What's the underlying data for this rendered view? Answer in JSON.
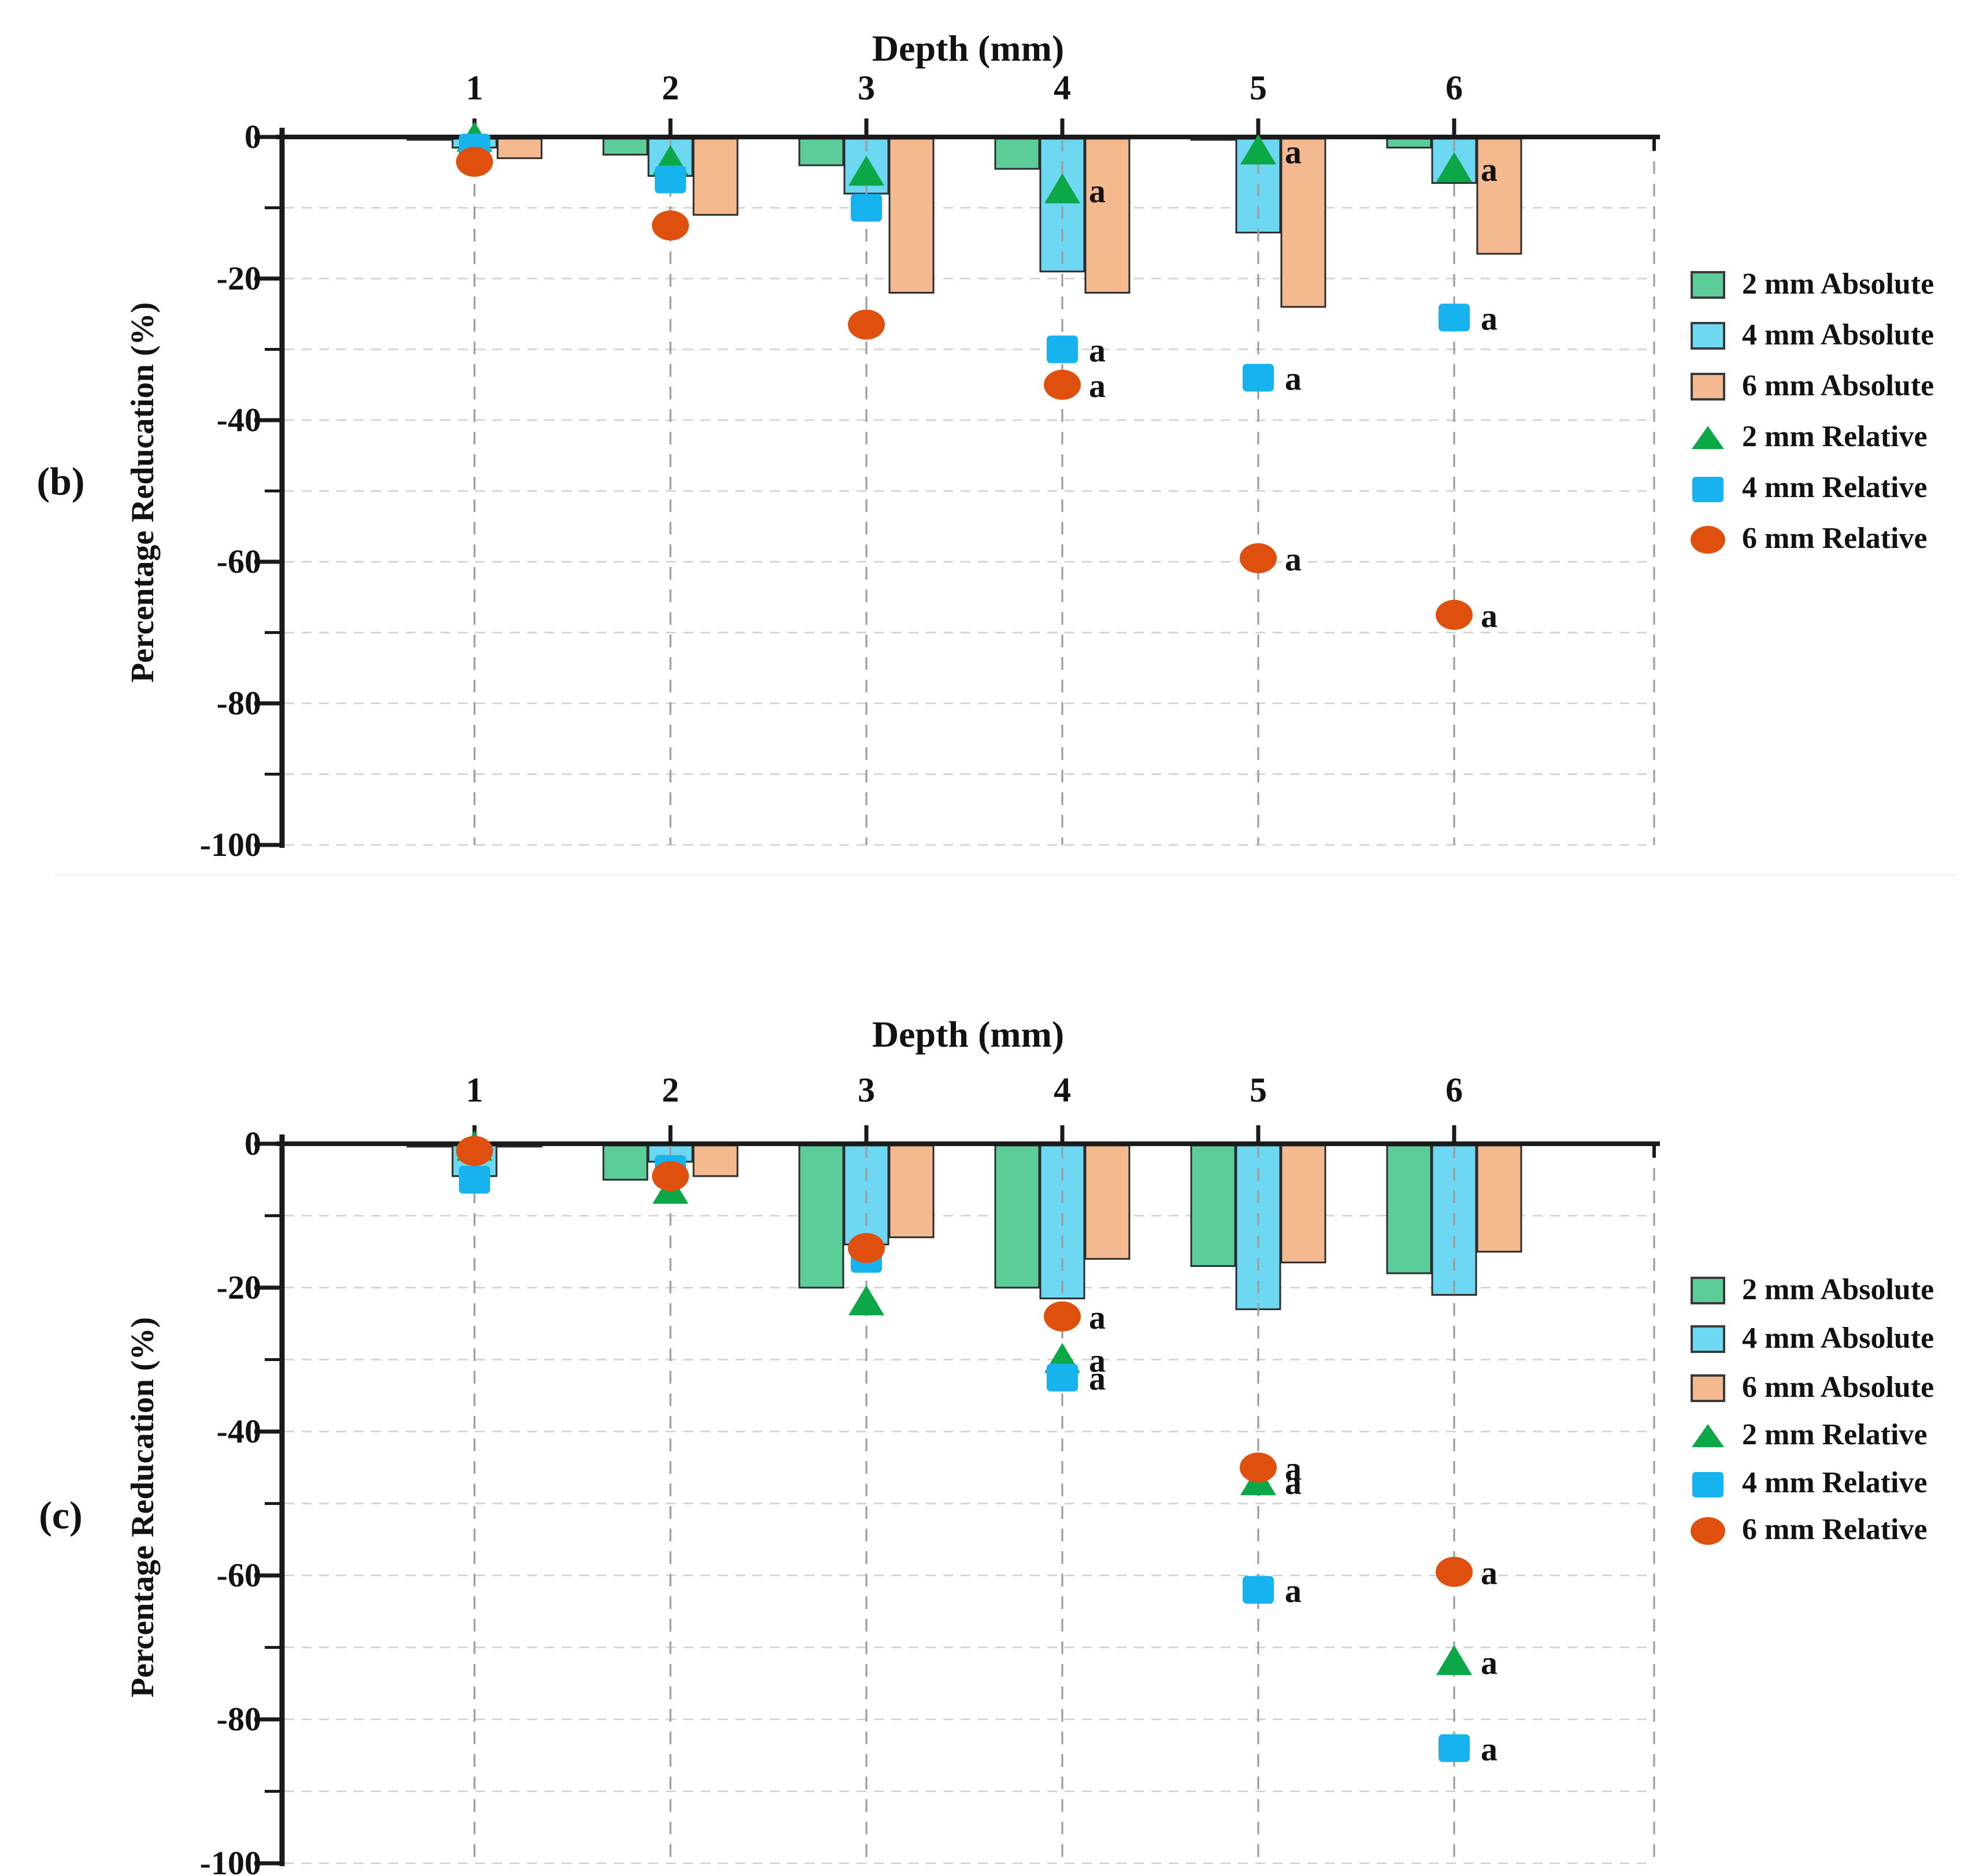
{
  "figure": {
    "background": "#ffffff",
    "divider_present": true,
    "legend": {
      "items": [
        {
          "label": "2 mm Absolute",
          "swatch": "bar",
          "color": "#5CCC98"
        },
        {
          "label": "4 mm Absolute",
          "swatch": "bar",
          "color": "#6ED7F2"
        },
        {
          "label": "6 mm Absolute",
          "swatch": "bar",
          "color": "#F5B98F"
        },
        {
          "label": "2 mm Relative",
          "swatch": "triangle",
          "color": "#0CA847"
        },
        {
          "label": "4 mm Relative",
          "swatch": "square",
          "color": "#17B3EF"
        },
        {
          "label": "6 mm Relative",
          "swatch": "circle",
          "color": "#DF500E"
        }
      ]
    },
    "colors": {
      "axis": "#1a1a1a",
      "text": "#121212",
      "grid_horizontal": "#cfcfcf",
      "grid_vertical": "#9d9d9d",
      "bar_border": "#2b2b2b"
    }
  },
  "chart_data": [
    {
      "type": "bar",
      "panel_label": "(b)",
      "title": "Depth (mm)",
      "xlabel": "Depth (mm)",
      "ylabel": "Percentage Reducation (%)",
      "categories": [
        1,
        2,
        3,
        4,
        5,
        6
      ],
      "x_tick_labels": [
        "1",
        "2",
        "3",
        "4",
        "5",
        "6"
      ],
      "y_tick_labels": [
        "0",
        "-20",
        "-40",
        "-60",
        "-80",
        "-100"
      ],
      "ylim": [
        -100,
        0
      ],
      "y_major_step": 20,
      "y_minor_step": 10,
      "grid": "dashed",
      "legend_position": "right",
      "series": [
        {
          "name": "2 mm Absolute",
          "kind": "bar",
          "color": "#5CCC98",
          "values": [
            -0.2,
            -2.5,
            -4,
            -4.5,
            -0.2,
            -1.5
          ]
        },
        {
          "name": "4 mm Absolute",
          "kind": "bar",
          "color": "#6ED7F2",
          "values": [
            -1.5,
            -5.5,
            -8,
            -19,
            -13.5,
            -6.5
          ]
        },
        {
          "name": "6 mm Absolute",
          "kind": "bar",
          "color": "#F5B98F",
          "values": [
            -3,
            -11,
            -22,
            -22,
            -24,
            -16.5
          ]
        },
        {
          "name": "2 mm Relative",
          "kind": "point-triangle",
          "color": "#0CA847",
          "values": [
            -0.2,
            -3.5,
            -5,
            -7.5,
            -2,
            -4.5
          ],
          "annotations": [
            null,
            null,
            null,
            "a",
            "a",
            "a"
          ]
        },
        {
          "name": "4 mm Relative",
          "kind": "point-square",
          "color": "#17B3EF",
          "values": [
            -1.5,
            -6,
            -10,
            -30,
            -34,
            -25.5
          ],
          "annotations": [
            null,
            null,
            null,
            "a",
            "a",
            "a"
          ]
        },
        {
          "name": "6 mm Relative",
          "kind": "point-circle",
          "color": "#DF500E",
          "values": [
            -3.5,
            -12.5,
            -26.5,
            -35,
            -59.5,
            -67.5
          ],
          "annotations": [
            null,
            null,
            null,
            "a",
            "a",
            "a"
          ]
        }
      ]
    },
    {
      "type": "bar",
      "panel_label": "(c)",
      "title": "Depth (mm)",
      "xlabel": "Depth (mm)",
      "ylabel": "Percentage Reducation (%)",
      "categories": [
        1,
        2,
        3,
        4,
        5,
        6
      ],
      "x_tick_labels": [
        "1",
        "2",
        "3",
        "4",
        "5",
        "6"
      ],
      "y_tick_labels": [
        "0",
        "-20",
        "-40",
        "-60",
        "-80",
        "-100"
      ],
      "ylim": [
        -100,
        0
      ],
      "y_major_step": 20,
      "y_minor_step": 10,
      "grid": "dashed",
      "legend_position": "right",
      "series": [
        {
          "name": "2 mm Absolute",
          "kind": "bar",
          "color": "#5CCC98",
          "values": [
            -0.2,
            -5,
            -20,
            -20,
            -17,
            -18
          ]
        },
        {
          "name": "4 mm Absolute",
          "kind": "bar",
          "color": "#6ED7F2",
          "values": [
            -4.5,
            -2.5,
            -14,
            -21.5,
            -23,
            -21
          ]
        },
        {
          "name": "6 mm Absolute",
          "kind": "bar",
          "color": "#F5B98F",
          "values": [
            -0.2,
            -4.5,
            -13,
            -16,
            -16.5,
            -15
          ]
        },
        {
          "name": "2 mm Relative",
          "kind": "point-triangle",
          "color": "#0CA847",
          "values": [
            -0.5,
            -6.5,
            -22,
            -30,
            -47,
            -72
          ],
          "annotations": [
            null,
            null,
            null,
            "a",
            "a",
            "a"
          ]
        },
        {
          "name": "4 mm Relative",
          "kind": "point-square",
          "color": "#17B3EF",
          "values": [
            -5,
            -3.5,
            -16,
            -32.5,
            -62,
            -84
          ],
          "annotations": [
            null,
            null,
            null,
            "a",
            "a",
            "a"
          ]
        },
        {
          "name": "6 mm Relative",
          "kind": "point-circle",
          "color": "#DF500E",
          "values": [
            -1,
            -4.5,
            -14.5,
            -24,
            -45,
            -59.5
          ],
          "annotations": [
            null,
            null,
            null,
            "a",
            "a",
            "a"
          ]
        }
      ]
    }
  ]
}
